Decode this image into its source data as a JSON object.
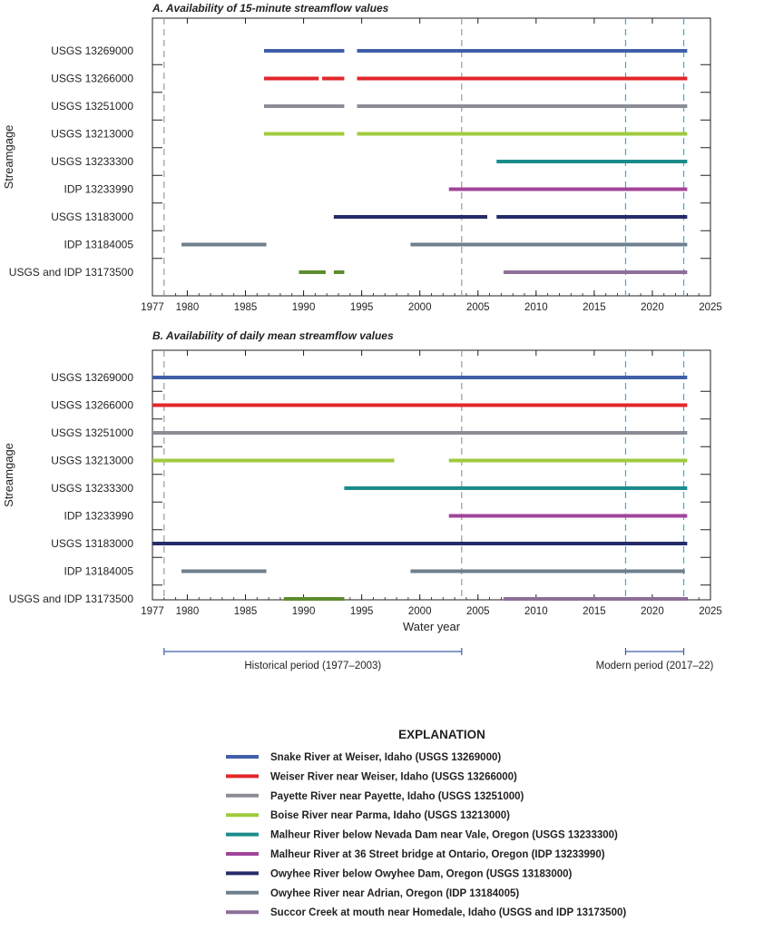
{
  "chart_data": [
    {
      "type": "timeline",
      "title": "A. Availability of 15-minute streamflow values",
      "title_letter": "A.",
      "title_rest": " Availability of 15-minute streamflow values",
      "ylabel": "Streamgage",
      "xlabel": "",
      "xlim": [
        1977,
        2025
      ],
      "xticks": [
        1977,
        1980,
        1985,
        1990,
        1995,
        2000,
        2005,
        2010,
        2015,
        2020,
        2025
      ],
      "gages": [
        {
          "label": "USGS 13269000",
          "color": "#3f5fa8",
          "spans": [
            [
              1986.6,
              1993.5
            ],
            [
              1994.6,
              2023.0
            ]
          ]
        },
        {
          "label": "USGS 13266000",
          "color": "#e3262a",
          "spans": [
            [
              1986.6,
              1991.3
            ],
            [
              1991.6,
              1993.5
            ],
            [
              1994.6,
              2023.0
            ]
          ]
        },
        {
          "label": "USGS 13251000",
          "color": "#8c8c96",
          "spans": [
            [
              1986.6,
              1993.5
            ],
            [
              1994.6,
              2023.0
            ]
          ]
        },
        {
          "label": "USGS 13213000",
          "color": "#9fcb3c",
          "spans": [
            [
              1986.6,
              1993.5
            ],
            [
              1994.6,
              2023.0
            ]
          ]
        },
        {
          "label": "USGS 13233300",
          "color": "#1b8b8b",
          "spans": [
            [
              2006.6,
              2023.0
            ]
          ]
        },
        {
          "label": "IDP 13233990",
          "color": "#a2449b",
          "spans": [
            [
              2002.5,
              2023.0
            ]
          ]
        },
        {
          "label": "USGS 13183000",
          "color": "#262b6c",
          "spans": [
            [
              1992.6,
              2005.8
            ],
            [
              2006.6,
              2023.0
            ]
          ]
        },
        {
          "label": "IDP 13184005",
          "color": "#6e7f8d",
          "spans": [
            [
              1979.5,
              1986.8
            ],
            [
              1999.2,
              2023.0
            ]
          ]
        },
        {
          "label": "USGS and IDP 13173500",
          "color": "#5d8c2e",
          "color2": "#8e6f99",
          "spans": [
            [
              1989.6,
              1991.9
            ],
            [
              1992.6,
              1993.5
            ]
          ],
          "spans2": [
            [
              2007.2,
              2023.0
            ]
          ]
        }
      ],
      "reference_lines": [
        1978.0,
        2003.6,
        2017.7,
        2022.7
      ]
    },
    {
      "type": "timeline",
      "title": "B. Availability of daily mean streamflow values",
      "title_letter": "B.",
      "title_rest": " Availability of daily mean streamflow values",
      "ylabel": "Streamgage",
      "xlabel": "Water year",
      "xlim": [
        1977,
        2025
      ],
      "xticks": [
        1977,
        1980,
        1985,
        1990,
        1995,
        2000,
        2005,
        2010,
        2015,
        2020,
        2025
      ],
      "gages": [
        {
          "label": "USGS 13269000",
          "color": "#3f5fa8",
          "spans": [
            [
              1977.0,
              2023.0
            ]
          ]
        },
        {
          "label": "USGS 13266000",
          "color": "#e3262a",
          "spans": [
            [
              1977.0,
              2023.0
            ]
          ]
        },
        {
          "label": "USGS 13251000",
          "color": "#8c8c96",
          "spans": [
            [
              1977.0,
              2023.0
            ]
          ]
        },
        {
          "label": "USGS 13213000",
          "color": "#9fcb3c",
          "spans": [
            [
              1977.0,
              1997.8
            ],
            [
              2002.5,
              2023.0
            ]
          ]
        },
        {
          "label": "USGS 13233300",
          "color": "#1b8b8b",
          "spans": [
            [
              1993.5,
              2023.0
            ]
          ]
        },
        {
          "label": "IDP 13233990",
          "color": "#a2449b",
          "spans": [
            [
              2002.5,
              2023.0
            ]
          ]
        },
        {
          "label": "USGS 13183000",
          "color": "#262b6c",
          "spans": [
            [
              1977.0,
              2023.0
            ]
          ]
        },
        {
          "label": "IDP 13184005",
          "color": "#6e7f8d",
          "spans": [
            [
              1979.5,
              1986.8
            ],
            [
              1999.2,
              2022.8
            ]
          ]
        },
        {
          "label": "USGS and IDP 13173500",
          "color": "#5d8c2e",
          "color2": "#8e6f99",
          "spans": [
            [
              1988.3,
              1993.5
            ]
          ],
          "spans2": [
            [
              2007.2,
              2023.0
            ]
          ]
        }
      ],
      "reference_lines": [
        1978.0,
        2003.6,
        2017.7,
        2022.7
      ]
    }
  ],
  "periods": [
    {
      "label": "Historical period (1977–2003)",
      "range": [
        1978.0,
        2003.6
      ]
    },
    {
      "label": "Modern period (2017–22)",
      "range": [
        2017.7,
        2022.7
      ]
    }
  ],
  "legend": {
    "title": "EXPLANATION",
    "items": [
      {
        "label": "Snake River at Weiser, Idaho (USGS 13269000)",
        "color": "#3f5fa8"
      },
      {
        "label": "Weiser River near Weiser, Idaho (USGS 13266000)",
        "color": "#e3262a"
      },
      {
        "label": "Payette River near Payette, Idaho (USGS 13251000)",
        "color": "#8c8c96"
      },
      {
        "label": "Boise River near Parma, Idaho (USGS 13213000)",
        "color": "#9fcb3c"
      },
      {
        "label": "Malheur River below Nevada Dam near Vale, Oregon (USGS 13233300)",
        "color": "#1b8b8b"
      },
      {
        "label": "Malheur River at 36 Street bridge at Ontario, Oregon (IDP 13233990)",
        "color": "#a2449b"
      },
      {
        "label": "Owyhee River below Owyhee Dam, Oregon (USGS 13183000)",
        "color": "#262b6c"
      },
      {
        "label": "Owyhee River near Adrian, Oregon (IDP 13184005)",
        "color": "#6e7f8d"
      },
      {
        "label": "Succor Creek at mouth near Homedale, Idaho (USGS and IDP 13173500)",
        "color": "#8e6f99"
      }
    ]
  },
  "colors": {
    "axis": "#231f20",
    "historical_line": "#9a9a9a",
    "modern_line": "#3fa9d8",
    "period_bracket": "#3f5fa8"
  }
}
